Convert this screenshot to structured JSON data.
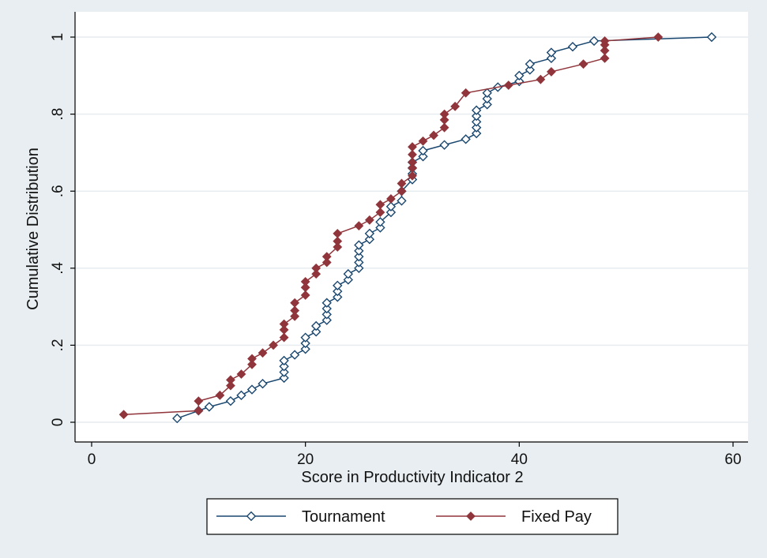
{
  "chart_data": {
    "type": "line",
    "xlabel": "Score in Productivity Indicator 2",
    "ylabel": "Cumulative Distribution",
    "xlim": [
      0,
      60
    ],
    "ylim": [
      0,
      1
    ],
    "x_ticks": [
      0,
      20,
      40,
      60
    ],
    "x_tick_labels": [
      "0",
      "20",
      "40",
      "60"
    ],
    "y_ticks": [
      0,
      0.2,
      0.4,
      0.6,
      0.8,
      1
    ],
    "y_tick_labels": [
      "0",
      ".2",
      ".4",
      ".6",
      ".8",
      "1"
    ],
    "grid": "horizontal",
    "legend_position": "bottom",
    "series": [
      {
        "name": "Tournament",
        "color": "#1a476f",
        "marker": "hollow-diamond",
        "points": [
          [
            8,
            0.01
          ],
          [
            10,
            0.03
          ],
          [
            11,
            0.04
          ],
          [
            13,
            0.055
          ],
          [
            14,
            0.07
          ],
          [
            15,
            0.085
          ],
          [
            16,
            0.1
          ],
          [
            18,
            0.115
          ],
          [
            18,
            0.13
          ],
          [
            18,
            0.145
          ],
          [
            18,
            0.16
          ],
          [
            19,
            0.175
          ],
          [
            20,
            0.19
          ],
          [
            20,
            0.205
          ],
          [
            20,
            0.22
          ],
          [
            21,
            0.235
          ],
          [
            21,
            0.25
          ],
          [
            22,
            0.265
          ],
          [
            22,
            0.28
          ],
          [
            22,
            0.295
          ],
          [
            22,
            0.31
          ],
          [
            23,
            0.325
          ],
          [
            23,
            0.34
          ],
          [
            23,
            0.355
          ],
          [
            24,
            0.37
          ],
          [
            24,
            0.385
          ],
          [
            25,
            0.4
          ],
          [
            25,
            0.415
          ],
          [
            25,
            0.43
          ],
          [
            25,
            0.445
          ],
          [
            25,
            0.46
          ],
          [
            26,
            0.475
          ],
          [
            26,
            0.49
          ],
          [
            27,
            0.505
          ],
          [
            27,
            0.52
          ],
          [
            28,
            0.545
          ],
          [
            28,
            0.56
          ],
          [
            29,
            0.575
          ],
          [
            29,
            0.6
          ],
          [
            30,
            0.63
          ],
          [
            30,
            0.645
          ],
          [
            30,
            0.66
          ],
          [
            30,
            0.675
          ],
          [
            31,
            0.69
          ],
          [
            31,
            0.705
          ],
          [
            33,
            0.72
          ],
          [
            35,
            0.735
          ],
          [
            36,
            0.75
          ],
          [
            36,
            0.765
          ],
          [
            36,
            0.78
          ],
          [
            36,
            0.795
          ],
          [
            36,
            0.81
          ],
          [
            37,
            0.825
          ],
          [
            37,
            0.84
          ],
          [
            37,
            0.855
          ],
          [
            38,
            0.87
          ],
          [
            40,
            0.885
          ],
          [
            40,
            0.9
          ],
          [
            41,
            0.915
          ],
          [
            41,
            0.93
          ],
          [
            43,
            0.945
          ],
          [
            43,
            0.96
          ],
          [
            45,
            0.975
          ],
          [
            47,
            0.99
          ],
          [
            58,
            1.0
          ]
        ]
      },
      {
        "name": "Fixed Pay",
        "color": "#90353b",
        "marker": "filled-diamond",
        "points": [
          [
            3,
            0.02
          ],
          [
            10,
            0.03
          ],
          [
            10,
            0.055
          ],
          [
            12,
            0.07
          ],
          [
            13,
            0.095
          ],
          [
            13,
            0.11
          ],
          [
            14,
            0.125
          ],
          [
            15,
            0.15
          ],
          [
            15,
            0.165
          ],
          [
            16,
            0.18
          ],
          [
            17,
            0.2
          ],
          [
            18,
            0.22
          ],
          [
            18,
            0.24
          ],
          [
            18,
            0.255
          ],
          [
            19,
            0.275
          ],
          [
            19,
            0.29
          ],
          [
            19,
            0.31
          ],
          [
            20,
            0.33
          ],
          [
            20,
            0.35
          ],
          [
            20,
            0.365
          ],
          [
            21,
            0.385
          ],
          [
            21,
            0.4
          ],
          [
            22,
            0.415
          ],
          [
            22,
            0.43
          ],
          [
            23,
            0.455
          ],
          [
            23,
            0.47
          ],
          [
            23,
            0.49
          ],
          [
            25,
            0.51
          ],
          [
            26,
            0.525
          ],
          [
            27,
            0.545
          ],
          [
            27,
            0.565
          ],
          [
            28,
            0.58
          ],
          [
            29,
            0.6
          ],
          [
            29,
            0.62
          ],
          [
            30,
            0.64
          ],
          [
            30,
            0.66
          ],
          [
            30,
            0.675
          ],
          [
            30,
            0.695
          ],
          [
            30,
            0.715
          ],
          [
            31,
            0.73
          ],
          [
            32,
            0.745
          ],
          [
            33,
            0.765
          ],
          [
            33,
            0.785
          ],
          [
            33,
            0.8
          ],
          [
            34,
            0.82
          ],
          [
            35,
            0.855
          ],
          [
            39,
            0.875
          ],
          [
            42,
            0.89
          ],
          [
            43,
            0.91
          ],
          [
            46,
            0.93
          ],
          [
            48,
            0.945
          ],
          [
            48,
            0.965
          ],
          [
            48,
            0.98
          ],
          [
            48,
            0.99
          ],
          [
            53,
            1.0
          ]
        ]
      }
    ]
  }
}
